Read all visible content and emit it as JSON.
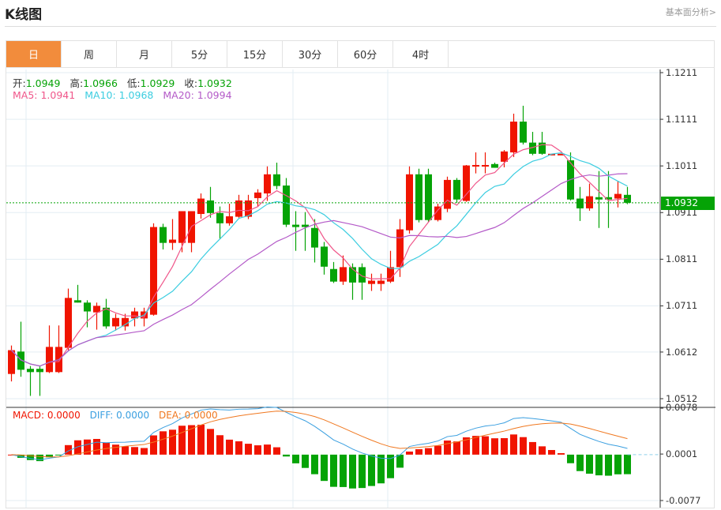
{
  "header": {
    "title": "K线图",
    "link": "基本面分析>"
  },
  "tabs": [
    {
      "label": "日",
      "active": true
    },
    {
      "label": "周"
    },
    {
      "label": "月"
    },
    {
      "label": "5分"
    },
    {
      "label": "15分"
    },
    {
      "label": "30分"
    },
    {
      "label": "60分"
    },
    {
      "label": "4时"
    }
  ],
  "ohlc_info": {
    "open_label": "开:",
    "open": "1.0949",
    "high_label": "高:",
    "high": "1.0966",
    "low_label": "低:",
    "low": "1.0929",
    "close_label": "收:",
    "close": "1.0932"
  },
  "ma_info": {
    "ma5": "MA5: 1.0941",
    "ma10": "MA10: 1.0968",
    "ma20": "MA20: 1.0994"
  },
  "macd_info": {
    "macd": "MACD: 0.0000",
    "diff": "DIFF: 0.0000",
    "dea": "DEA: 0.0000"
  },
  "price_axis": [
    "1.1211",
    "1.1111",
    "1.1011",
    "1.0911",
    "1.0811",
    "1.0711",
    "1.0612",
    "1.0512"
  ],
  "macd_axis": [
    "0.0078",
    "0.0001",
    "-0.0077"
  ],
  "current_price": "1.0932",
  "colors": {
    "up": "#f01400",
    "down": "#05a306",
    "ma5": "#f0568a",
    "ma10": "#3ccde0",
    "ma20": "#b45ac8",
    "diff": "#3a9fe0",
    "dea": "#f07820",
    "accent": "#f28c3c"
  },
  "chart_data": {
    "type": "candlestick",
    "price_range": [
      1.0512,
      1.1211
    ],
    "macd_range": [
      -0.0077,
      0.0078
    ],
    "ma_periods": [
      5,
      10,
      20
    ],
    "candles": [
      [
        1.0565,
        1.0626,
        1.0549,
        1.0616
      ],
      [
        1.0613,
        1.0677,
        1.0559,
        1.0574
      ],
      [
        1.0576,
        1.0582,
        1.0518,
        1.0569
      ],
      [
        1.0576,
        1.0582,
        1.0518,
        1.0569
      ],
      [
        1.0569,
        1.0669,
        1.0567,
        1.0623
      ],
      [
        1.0569,
        1.0669,
        1.0567,
        1.0623
      ],
      [
        1.0621,
        1.0748,
        1.0616,
        1.0728
      ],
      [
        1.0723,
        1.0756,
        1.0718,
        1.0718
      ],
      [
        1.0718,
        1.0723,
        1.0665,
        1.0699
      ],
      [
        1.0697,
        1.0718,
        1.066,
        1.0711
      ],
      [
        1.0707,
        1.0726,
        1.0662,
        1.0667
      ],
      [
        1.0667,
        1.0694,
        1.0658,
        1.0685
      ],
      [
        1.0667,
        1.0694,
        1.0658,
        1.0685
      ],
      [
        1.0684,
        1.0707,
        1.0667,
        1.0699
      ],
      [
        1.0684,
        1.0707,
        1.0667,
        1.0699
      ],
      [
        1.0692,
        1.0888,
        1.069,
        1.088
      ],
      [
        1.088,
        1.0887,
        1.0832,
        1.0846
      ],
      [
        1.0846,
        1.0897,
        1.0831,
        1.0853
      ],
      [
        1.0846,
        1.0914,
        1.0826,
        1.0914
      ],
      [
        1.0846,
        1.0914,
        1.0826,
        1.0914
      ],
      [
        1.0908,
        1.0952,
        1.0898,
        1.0941
      ],
      [
        1.0937,
        1.0966,
        1.09,
        1.091
      ],
      [
        1.091,
        1.0924,
        1.0854,
        1.0888
      ],
      [
        1.0888,
        1.093,
        1.0883,
        1.0903
      ],
      [
        1.0902,
        1.0949,
        1.09,
        1.0937
      ],
      [
        1.0902,
        1.0949,
        1.0897,
        1.0937
      ],
      [
        1.0942,
        1.0961,
        1.0924,
        1.0954
      ],
      [
        1.0952,
        1.101,
        1.0936,
        1.0993
      ],
      [
        1.0993,
        1.1018,
        1.0961,
        1.0968
      ],
      [
        1.0969,
        1.0985,
        1.088,
        1.0885
      ],
      [
        1.0885,
        1.0914,
        1.0829,
        1.088
      ],
      [
        1.0885,
        1.0912,
        1.0829,
        1.088
      ],
      [
        1.0878,
        1.0897,
        1.0804,
        1.0836
      ],
      [
        1.0838,
        1.0848,
        1.0778,
        1.0795
      ],
      [
        1.079,
        1.0805,
        1.076,
        1.0763
      ],
      [
        1.0763,
        1.0819,
        1.0756,
        1.0794
      ],
      [
        1.0794,
        1.0802,
        1.0724,
        1.0761
      ],
      [
        1.0794,
        1.0802,
        1.0724,
        1.0761
      ],
      [
        1.0758,
        1.078,
        1.0743,
        1.0765
      ],
      [
        1.0758,
        1.078,
        1.0743,
        1.0765
      ],
      [
        1.0763,
        1.0829,
        1.076,
        1.0794
      ],
      [
        1.0794,
        1.0897,
        1.0773,
        1.0875
      ],
      [
        1.0873,
        1.101,
        1.0866,
        1.0993
      ],
      [
        1.0993,
        1.1005,
        1.089,
        1.0895
      ],
      [
        1.0993,
        1.1005,
        1.089,
        1.0895
      ],
      [
        1.0895,
        1.093,
        1.0892,
        1.0924
      ],
      [
        1.0919,
        1.0988,
        1.0912,
        1.0981
      ],
      [
        1.0981,
        1.0985,
        1.0932,
        1.0939
      ],
      [
        1.0936,
        1.1013,
        1.0934,
        1.1012
      ],
      [
        1.101,
        1.104,
        1.0995,
        1.1013
      ],
      [
        1.101,
        1.104,
        1.0995,
        1.1013
      ],
      [
        1.1015,
        1.1018,
        1.1007,
        1.1007
      ],
      [
        1.102,
        1.1045,
        1.1008,
        1.1042
      ],
      [
        1.104,
        1.1123,
        1.103,
        1.1106
      ],
      [
        1.1106,
        1.114,
        1.1057,
        1.1061
      ],
      [
        1.1061,
        1.1084,
        1.1034,
        1.1037
      ],
      [
        1.1061,
        1.1084,
        1.1035,
        1.1037
      ],
      [
        1.1035,
        1.1037,
        1.1035,
        1.1037
      ],
      [
        1.1035,
        1.1037,
        1.1035,
        1.1037
      ],
      [
        1.1023,
        1.104,
        1.0937,
        1.0939
      ],
      [
        1.0941,
        1.0966,
        1.0893,
        1.092
      ],
      [
        1.092,
        1.0973,
        1.0915,
        1.0946
      ],
      [
        1.0944,
        1.1,
        1.0878,
        1.0939
      ],
      [
        1.0944,
        1.1,
        1.0878,
        1.0939
      ],
      [
        1.0941,
        1.0979,
        1.0922,
        1.0951
      ],
      [
        1.0949,
        1.0966,
        1.0929,
        1.0932
      ]
    ]
  }
}
